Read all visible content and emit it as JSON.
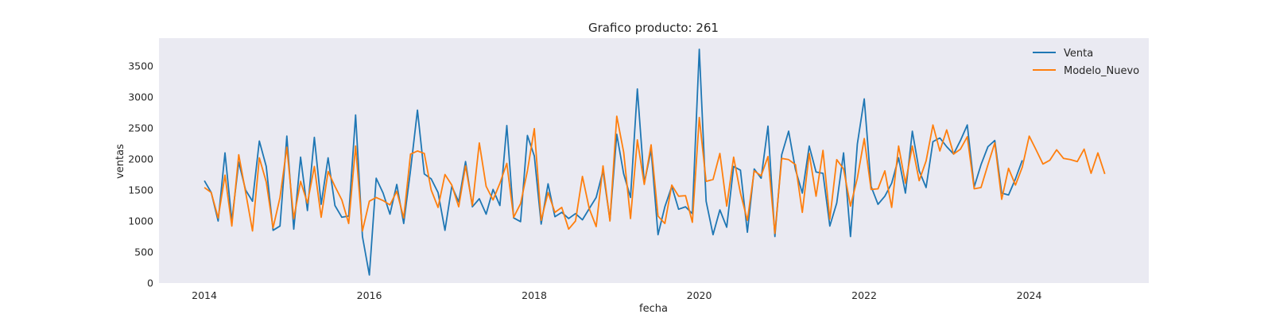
{
  "chart_data": {
    "type": "line",
    "title": "Grafico producto: 261",
    "xlabel": "fecha",
    "ylabel": "ventas",
    "xlim": [
      2013.45,
      2025.45
    ],
    "ylim": [
      0,
      3950
    ],
    "x_ticks": [
      2014,
      2016,
      2018,
      2020,
      2022,
      2024
    ],
    "y_ticks": [
      0,
      500,
      1000,
      1500,
      2000,
      2500,
      3000,
      3500
    ],
    "grid": false,
    "background": "#eaeaf2",
    "legend_position": "top-right",
    "x_start": 2014.0,
    "x_step": 0.0833333,
    "series": [
      {
        "name": "Venta",
        "color": "#1f77b4",
        "values": [
          1650,
          1460,
          1000,
          2100,
          1000,
          1950,
          1500,
          1320,
          2290,
          1880,
          850,
          920,
          2370,
          870,
          2030,
          1170,
          2350,
          1270,
          2020,
          1250,
          1060,
          1080,
          2710,
          750,
          130,
          1690,
          1450,
          1110,
          1590,
          960,
          1820,
          2790,
          1760,
          1680,
          1460,
          850,
          1560,
          1310,
          1960,
          1230,
          1360,
          1110,
          1510,
          1250,
          2540,
          1050,
          990,
          2380,
          2050,
          950,
          1600,
          1070,
          1140,
          1040,
          1120,
          1020,
          1200,
          1380,
          1810,
          1020,
          2400,
          1760,
          1380,
          3130,
          1610,
          2150,
          780,
          1230,
          1560,
          1190,
          1230,
          1120,
          3770,
          1320,
          780,
          1180,
          900,
          1880,
          1820,
          820,
          1840,
          1690,
          2530,
          750,
          2070,
          2450,
          1830,
          1450,
          2210,
          1790,
          1770,
          920,
          1290,
          2100,
          750,
          2240,
          2970,
          1560,
          1270,
          1400,
          1610,
          2020,
          1450,
          2450,
          1810,
          1540,
          2280,
          2340,
          2200,
          2080,
          2300,
          2550,
          1550,
          1910,
          2200,
          2300,
          1450,
          1420,
          1680,
          1980
        ]
      },
      {
        "name": "Modelo_Nuevo",
        "color": "#ff7f0e",
        "values": [
          1540,
          1460,
          1050,
          1740,
          920,
          2070,
          1470,
          840,
          2020,
          1630,
          890,
          1380,
          2190,
          1040,
          1640,
          1290,
          1880,
          1060,
          1800,
          1560,
          1340,
          960,
          2210,
          840,
          1320,
          1380,
          1330,
          1260,
          1480,
          1050,
          2080,
          2130,
          2090,
          1500,
          1220,
          1750,
          1580,
          1230,
          1890,
          1250,
          2260,
          1560,
          1340,
          1610,
          1930,
          1060,
          1280,
          1810,
          2490,
          1010,
          1460,
          1140,
          1220,
          870,
          1000,
          1720,
          1200,
          910,
          1890,
          1000,
          2690,
          2110,
          1040,
          2310,
          1590,
          2230,
          1080,
          960,
          1580,
          1400,
          1410,
          980,
          2670,
          1640,
          1670,
          2090,
          1240,
          2030,
          1450,
          1010,
          1810,
          1730,
          2040,
          800,
          2010,
          1990,
          1910,
          1140,
          2090,
          1400,
          2140,
          1030,
          1990,
          1840,
          1240,
          1690,
          2330,
          1510,
          1520,
          1810,
          1220,
          2210,
          1610,
          2210,
          1650,
          1970,
          2550,
          2130,
          2470,
          2080,
          2160,
          2360,
          1520,
          1540,
          1910,
          2260,
          1350,
          1850,
          1580,
          1870,
          2370,
          2150,
          1920,
          1980,
          2150,
          2010,
          1990,
          1960,
          2160,
          1770,
          2100,
          1760
        ]
      }
    ]
  }
}
